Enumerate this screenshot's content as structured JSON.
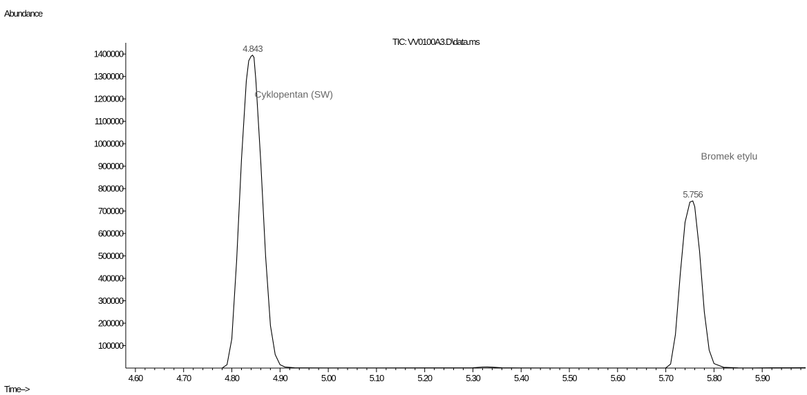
{
  "chart_data": {
    "type": "line",
    "title": "TIC: VV0100A3.D\\data.ms",
    "xlabel": "Time-->",
    "ylabel": "Abundance",
    "xlim": [
      4.58,
      5.99
    ],
    "ylim": [
      0,
      1450000
    ],
    "x_ticks": [
      "4.60",
      "4.70",
      "4.80",
      "4.90",
      "5.00",
      "5.10",
      "5.20",
      "5.30",
      "5.40",
      "5.50",
      "5.60",
      "5.70",
      "5.80",
      "5.90"
    ],
    "y_ticks": [
      "100000",
      "200000",
      "300000",
      "400000",
      "500000",
      "600000",
      "700000",
      "800000",
      "900000",
      "1000000",
      "1100000",
      "1200000",
      "1300000",
      "1400000"
    ],
    "series": [
      {
        "name": "",
        "x": [
          4.58,
          4.78,
          4.79,
          4.8,
          4.81,
          4.82,
          4.83,
          4.835,
          4.84,
          4.843,
          4.846,
          4.85,
          4.86,
          4.87,
          4.88,
          4.89,
          4.9,
          4.91,
          4.93,
          4.95,
          5.0,
          5.1,
          5.2,
          5.3,
          5.32,
          5.33,
          5.34,
          5.36,
          5.4,
          5.5,
          5.6,
          5.7,
          5.71,
          5.72,
          5.73,
          5.74,
          5.75,
          5.756,
          5.76,
          5.77,
          5.78,
          5.79,
          5.8,
          5.82,
          5.85,
          5.88,
          5.92,
          5.99
        ],
        "y": [
          0,
          0,
          15000,
          130000,
          480000,
          930000,
          1280000,
          1370000,
          1390000,
          1395000,
          1385000,
          1280000,
          920000,
          500000,
          190000,
          60000,
          15000,
          5000,
          1500,
          800,
          500,
          600,
          800,
          1500,
          4500,
          5000,
          4000,
          1200,
          500,
          400,
          400,
          600,
          18000,
          150000,
          420000,
          650000,
          740000,
          745000,
          720000,
          520000,
          250000,
          80000,
          20000,
          3500,
          1000,
          600,
          1200,
          2000
        ]
      }
    ],
    "peaks": [
      {
        "time": "4.843",
        "x": 4.843,
        "y": 1395000
      },
      {
        "time": "5.756",
        "x": 5.756,
        "y": 745000
      }
    ],
    "annotations": [
      {
        "text": "Cyklopentan (SW)",
        "x": 4.847,
        "y": 1205000
      },
      {
        "text": "Bromek etylu",
        "x": 5.773,
        "y": 930000
      }
    ]
  }
}
